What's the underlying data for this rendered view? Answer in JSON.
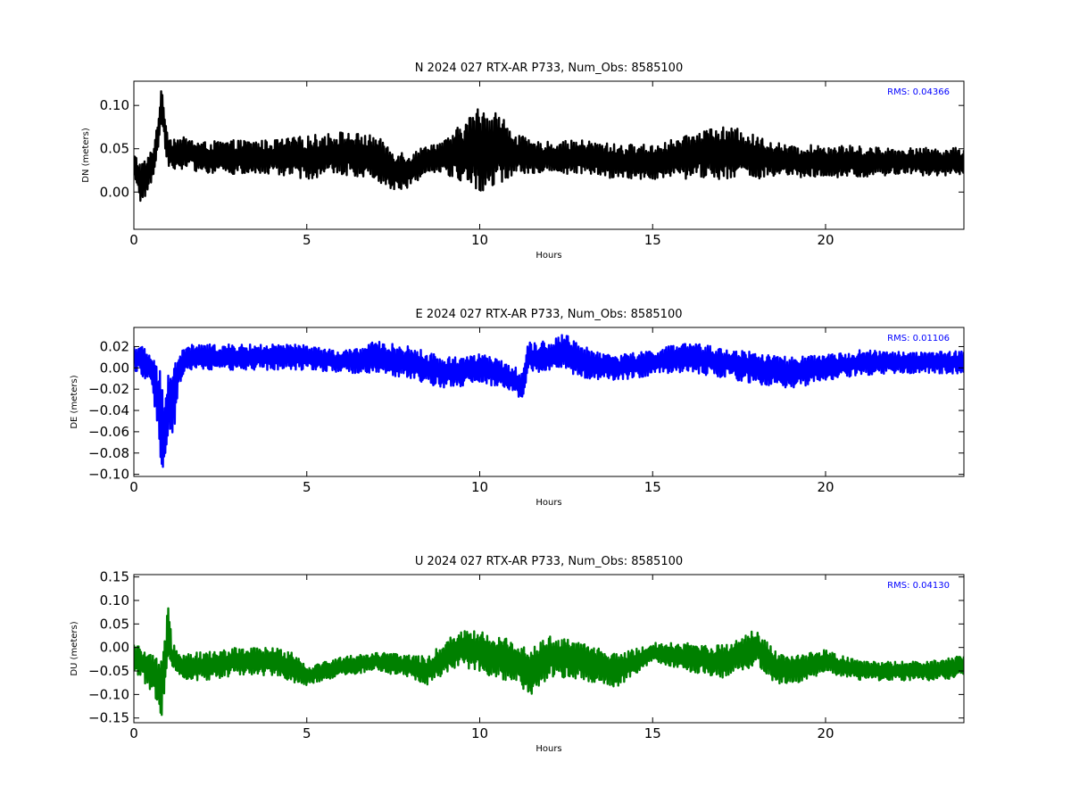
{
  "chart_data": [
    {
      "type": "line",
      "title": "N 2024 027 RTX-AR  P733, Num_Obs: 8585100",
      "xlabel": "Hours",
      "ylabel": "DN (meters)",
      "xlim": [
        0,
        24
      ],
      "ylim": [
        -0.043,
        0.128
      ],
      "xticks": [
        0,
        5,
        10,
        15,
        20
      ],
      "xtick_labels": [
        "0",
        "5",
        "10",
        "15",
        "20"
      ],
      "yticks": [
        0.0,
        0.05,
        0.1
      ],
      "ytick_labels": [
        "0.00",
        "0.05",
        "0.10"
      ],
      "rms_label": "RMS:  0.04366",
      "color": "#000000",
      "series": [
        {
          "values": {
            "hours": [
              0,
              0.2,
              0.4,
              0.6,
              0.8,
              1.0,
              1.5,
              2,
              3,
              4,
              5,
              6,
              7,
              7.5,
              8,
              8.5,
              9,
              9.5,
              10,
              10.5,
              11,
              11.5,
              12,
              13,
              14,
              15,
              16,
              16.5,
              17,
              17.5,
              18,
              19,
              20,
              21,
              22,
              23,
              24
            ],
            "mean": [
              0.03,
              0.01,
              0.02,
              0.04,
              0.1,
              0.045,
              0.045,
              0.04,
              0.04,
              0.04,
              0.04,
              0.045,
              0.04,
              0.025,
              0.025,
              0.04,
              0.04,
              0.045,
              0.05,
              0.05,
              0.045,
              0.04,
              0.04,
              0.04,
              0.035,
              0.035,
              0.04,
              0.045,
              0.045,
              0.045,
              0.04,
              0.035,
              0.035,
              0.035,
              0.035,
              0.035,
              0.035
            ],
            "spread": [
              0.015,
              0.025,
              0.02,
              0.02,
              0.02,
              0.02,
              0.018,
              0.018,
              0.02,
              0.02,
              0.025,
              0.025,
              0.025,
              0.025,
              0.02,
              0.015,
              0.02,
              0.035,
              0.05,
              0.045,
              0.025,
              0.018,
              0.018,
              0.02,
              0.02,
              0.02,
              0.025,
              0.03,
              0.03,
              0.028,
              0.025,
              0.018,
              0.02,
              0.018,
              0.016,
              0.016,
              0.016
            ]
          }
        }
      ]
    },
    {
      "type": "line",
      "title": "E 2024 027 RTX-AR  P733, Num_Obs: 8585100",
      "xlabel": "Hours",
      "ylabel": "DE (meters)",
      "xlim": [
        0,
        24
      ],
      "ylim": [
        -0.102,
        0.038
      ],
      "xticks": [
        0,
        5,
        10,
        15,
        20
      ],
      "xtick_labels": [
        "0",
        "5",
        "10",
        "15",
        "20"
      ],
      "yticks": [
        -0.1,
        -0.08,
        -0.06,
        -0.04,
        -0.02,
        0.0,
        0.02
      ],
      "ytick_labels": [
        "−0.10",
        "−0.08",
        "−0.06",
        "−0.04",
        "−0.02",
        "0.00",
        "0.02"
      ],
      "rms_label": "RMS:  0.01106",
      "color": "#0000ff",
      "series": [
        {
          "values": {
            "hours": [
              0,
              0.3,
              0.5,
              0.75,
              0.85,
              1.0,
              1.1,
              1.3,
              1.6,
              2,
              3,
              4,
              5,
              6,
              7,
              8,
              9,
              10,
              11,
              11.2,
              11.4,
              12,
              12.5,
              13,
              14,
              15,
              16,
              17,
              18,
              19,
              20,
              21,
              22,
              23,
              24
            ],
            "mean": [
              0.01,
              0.005,
              0.0,
              -0.04,
              -0.06,
              -0.03,
              -0.04,
              0.0,
              0.01,
              0.01,
              0.01,
              0.01,
              0.01,
              0.005,
              0.01,
              0.005,
              -0.005,
              0.0,
              -0.01,
              -0.02,
              0.01,
              0.01,
              0.015,
              0.005,
              0.0,
              0.005,
              0.01,
              0.005,
              0.0,
              -0.005,
              0.0,
              0.005,
              0.005,
              0.005,
              0.005
            ],
            "spread": [
              0.012,
              0.015,
              0.012,
              0.04,
              0.04,
              0.03,
              0.04,
              0.015,
              0.012,
              0.012,
              0.012,
              0.012,
              0.012,
              0.01,
              0.015,
              0.015,
              0.015,
              0.014,
              0.012,
              0.015,
              0.015,
              0.015,
              0.018,
              0.015,
              0.012,
              0.012,
              0.014,
              0.014,
              0.015,
              0.015,
              0.012,
              0.012,
              0.01,
              0.01,
              0.012
            ]
          }
        }
      ]
    },
    {
      "type": "line",
      "title": "U 2024 027 RTX-AR  P733, Num_Obs: 8585100",
      "xlabel": "Hours",
      "ylabel": "DU (meters)",
      "xlim": [
        0,
        24
      ],
      "ylim": [
        -0.16,
        0.155
      ],
      "xticks": [
        0,
        5,
        10,
        15,
        20
      ],
      "xtick_labels": [
        "0",
        "5",
        "10",
        "15",
        "20"
      ],
      "yticks": [
        -0.15,
        -0.1,
        -0.05,
        0.0,
        0.05,
        0.1,
        0.15
      ],
      "ytick_labels": [
        "−0.15",
        "−0.10",
        "−0.05",
        "0.00",
        "0.05",
        "0.10",
        "0.15"
      ],
      "rms_label": "RMS:  0.04130",
      "color": "#008000",
      "series": [
        {
          "values": {
            "hours": [
              0,
              0.3,
              0.6,
              0.8,
              0.9,
              1.0,
              1.1,
              1.4,
              2,
              3,
              4,
              4.6,
              5,
              6,
              7,
              8,
              8.5,
              9,
              9.5,
              10,
              11,
              11.5,
              12,
              13,
              14,
              15,
              16,
              17,
              18,
              18.5,
              19,
              20,
              21,
              22,
              23,
              24
            ],
            "mean": [
              -0.02,
              -0.04,
              -0.06,
              -0.09,
              -0.03,
              0.05,
              -0.02,
              -0.04,
              -0.04,
              -0.03,
              -0.03,
              -0.04,
              -0.06,
              -0.04,
              -0.03,
              -0.04,
              -0.05,
              -0.02,
              0.0,
              -0.01,
              -0.03,
              -0.05,
              -0.02,
              -0.03,
              -0.05,
              -0.01,
              -0.02,
              -0.03,
              0.0,
              -0.04,
              -0.05,
              -0.03,
              -0.05,
              -0.05,
              -0.05,
              -0.04
            ],
            "spread": [
              0.03,
              0.035,
              0.04,
              0.06,
              0.05,
              0.07,
              0.035,
              0.03,
              0.03,
              0.03,
              0.03,
              0.035,
              0.02,
              0.02,
              0.02,
              0.025,
              0.03,
              0.035,
              0.04,
              0.045,
              0.045,
              0.05,
              0.045,
              0.04,
              0.035,
              0.02,
              0.03,
              0.035,
              0.04,
              0.035,
              0.03,
              0.025,
              0.02,
              0.02,
              0.02,
              0.025
            ]
          }
        }
      ]
    }
  ]
}
